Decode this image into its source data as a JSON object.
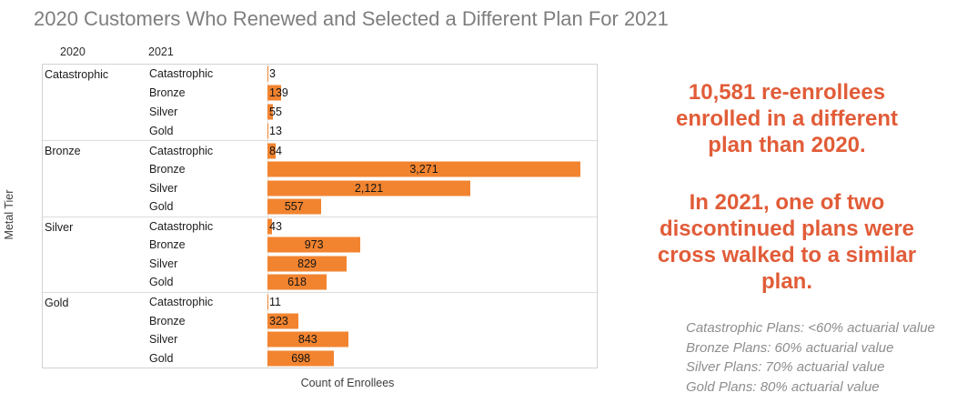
{
  "chart_data": {
    "type": "bar",
    "orientation": "horizontal",
    "title": "2020 Customers Who Renewed and Selected a Different Plan For 2021",
    "xlabel": "Count of Enrollees",
    "ylabel": "Metal Tier",
    "col_headers": [
      "2020",
      "2021"
    ],
    "bar_color": "#F28430",
    "value_label_color": "#141414",
    "max_value": 3271,
    "total_label": "10,581",
    "groups": [
      {
        "tier_2020": "Catastrophic",
        "rows": [
          {
            "tier_2021": "Catastrophic",
            "value": 3,
            "label": "3"
          },
          {
            "tier_2021": "Bronze",
            "value": 139,
            "label": "139"
          },
          {
            "tier_2021": "Silver",
            "value": 55,
            "label": "55"
          },
          {
            "tier_2021": "Gold",
            "value": 13,
            "label": "13"
          }
        ]
      },
      {
        "tier_2020": "Bronze",
        "rows": [
          {
            "tier_2021": "Catastrophic",
            "value": 84,
            "label": "84"
          },
          {
            "tier_2021": "Bronze",
            "value": 3271,
            "label": "3,271"
          },
          {
            "tier_2021": "Silver",
            "value": 2121,
            "label": "2,121"
          },
          {
            "tier_2021": "Gold",
            "value": 557,
            "label": "557"
          }
        ]
      },
      {
        "tier_2020": "Silver",
        "rows": [
          {
            "tier_2021": "Catastrophic",
            "value": 43,
            "label": "43"
          },
          {
            "tier_2021": "Bronze",
            "value": 973,
            "label": "973"
          },
          {
            "tier_2021": "Silver",
            "value": 829,
            "label": "829"
          },
          {
            "tier_2021": "Gold",
            "value": 618,
            "label": "618"
          }
        ]
      },
      {
        "tier_2020": "Gold",
        "rows": [
          {
            "tier_2021": "Catastrophic",
            "value": 11,
            "label": "11"
          },
          {
            "tier_2021": "Bronze",
            "value": 323,
            "label": "323"
          },
          {
            "tier_2021": "Silver",
            "value": 843,
            "label": "843"
          },
          {
            "tier_2021": "Gold",
            "value": 698,
            "label": "698"
          }
        ]
      }
    ]
  },
  "annotations": {
    "accent_color": "#E15C38",
    "headline_1": "10,581 re-enrollees\nenrolled in a different\nplan than 2020.",
    "headline_2": "In 2021, one of two\ndiscontinued plans were\ncross walked to a similar\nplan.",
    "footnote": "Catastrophic Plans: <60% actuarial value\nBronze Plans: 60% actuarial value\nSilver Plans: 70% actuarial value\nGold Plans: 80% actuarial value"
  }
}
